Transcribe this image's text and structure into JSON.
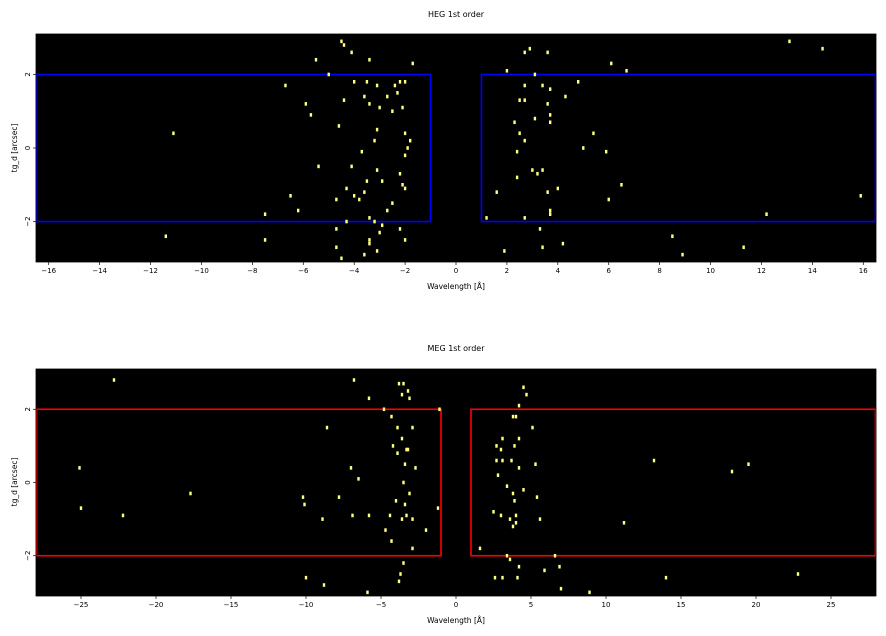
{
  "chart_data": [
    {
      "type": "scatter",
      "title": "HEG 1st order",
      "xlabel": "Wavelength [Å]",
      "ylabel": "tg_d [arcsec]",
      "xlim": [
        -16.5,
        16.5
      ],
      "ylim": [
        -3.1,
        3.1
      ],
      "xticks": [
        -16,
        -14,
        -12,
        -10,
        -8,
        -6,
        -4,
        -2,
        0,
        2,
        4,
        6,
        8,
        10,
        12,
        14,
        16
      ],
      "yticks": [
        -2,
        0,
        2
      ],
      "background": "#000000",
      "point_color": "#ffff80",
      "region_color": "#0000ff",
      "regions": [
        {
          "x0": -16.5,
          "x1": -1.0,
          "y0": -2.0,
          "y1": 2.0
        },
        {
          "x0": 1.0,
          "x1": 16.5,
          "y0": -2.0,
          "y1": 2.0
        }
      ],
      "points": [
        [
          -4.5,
          2.9
        ],
        [
          -4.4,
          2.8
        ],
        [
          -4.1,
          2.6
        ],
        [
          -3.4,
          2.4
        ],
        [
          -5.5,
          2.4
        ],
        [
          -1.7,
          2.3
        ],
        [
          -5.0,
          2.0
        ],
        [
          -6.7,
          1.7
        ],
        [
          -4.0,
          1.8
        ],
        [
          -3.5,
          1.8
        ],
        [
          -3.1,
          1.7
        ],
        [
          -2.4,
          1.7
        ],
        [
          -2.2,
          1.8
        ],
        [
          -2.0,
          1.8
        ],
        [
          -3.6,
          1.4
        ],
        [
          -2.7,
          1.4
        ],
        [
          -2.3,
          1.5
        ],
        [
          -4.4,
          1.3
        ],
        [
          -3.4,
          1.2
        ],
        [
          -3.0,
          1.1
        ],
        [
          -2.1,
          1.1
        ],
        [
          -5.9,
          1.2
        ],
        [
          -5.7,
          0.9
        ],
        [
          -2.5,
          1.0
        ],
        [
          -4.6,
          0.6
        ],
        [
          -3.1,
          0.5
        ],
        [
          -11.1,
          0.4
        ],
        [
          -2.0,
          0.4
        ],
        [
          -3.2,
          0.2
        ],
        [
          -1.8,
          0.2
        ],
        [
          -1.9,
          0.0
        ],
        [
          -3.7,
          -0.1
        ],
        [
          -2.0,
          -0.2
        ],
        [
          -5.4,
          -0.5
        ],
        [
          -4.1,
          -0.5
        ],
        [
          -3.1,
          -0.6
        ],
        [
          -2.2,
          -0.7
        ],
        [
          -3.5,
          -0.9
        ],
        [
          -2.9,
          -0.9
        ],
        [
          -2.1,
          -1.0
        ],
        [
          -4.3,
          -1.1
        ],
        [
          -2.0,
          -1.1
        ],
        [
          -3.6,
          -1.2
        ],
        [
          -6.5,
          -1.3
        ],
        [
          -3.8,
          -1.4
        ],
        [
          -4.0,
          -1.3
        ],
        [
          -4.7,
          -1.4
        ],
        [
          -2.5,
          -1.5
        ],
        [
          -6.2,
          -1.7
        ],
        [
          -2.7,
          -1.7
        ],
        [
          -3.4,
          -1.9
        ],
        [
          -7.5,
          -1.8
        ],
        [
          -4.3,
          -2.0
        ],
        [
          -3.2,
          -2.0
        ],
        [
          -2.9,
          -2.1
        ],
        [
          -4.7,
          -2.2
        ],
        [
          -2.2,
          -2.2
        ],
        [
          -3.0,
          -2.3
        ],
        [
          -11.4,
          -2.4
        ],
        [
          -3.4,
          -2.5
        ],
        [
          -2.0,
          -2.5
        ],
        [
          -7.5,
          -2.5
        ],
        [
          -4.7,
          -2.7
        ],
        [
          -3.4,
          -2.6
        ],
        [
          -4.5,
          -3.0
        ],
        [
          -3.1,
          -2.8
        ],
        [
          -3.6,
          -2.9
        ],
        [
          2.7,
          2.6
        ],
        [
          3.6,
          2.6
        ],
        [
          2.9,
          2.7
        ],
        [
          6.1,
          2.3
        ],
        [
          6.7,
          2.1
        ],
        [
          2.0,
          2.1
        ],
        [
          3.1,
          2.0
        ],
        [
          4.8,
          1.8
        ],
        [
          2.7,
          1.7
        ],
        [
          3.4,
          1.7
        ],
        [
          3.7,
          1.6
        ],
        [
          4.3,
          1.4
        ],
        [
          2.5,
          1.3
        ],
        [
          2.7,
          1.3
        ],
        [
          3.6,
          1.2
        ],
        [
          3.7,
          0.9
        ],
        [
          3.1,
          0.8
        ],
        [
          3.7,
          0.7
        ],
        [
          2.3,
          0.7
        ],
        [
          2.5,
          0.4
        ],
        [
          5.4,
          0.4
        ],
        [
          2.7,
          0.2
        ],
        [
          5.0,
          0.0
        ],
        [
          2.4,
          -0.1
        ],
        [
          5.9,
          -0.1
        ],
        [
          3.0,
          -0.6
        ],
        [
          3.4,
          -0.6
        ],
        [
          3.2,
          -0.7
        ],
        [
          2.4,
          -0.8
        ],
        [
          6.5,
          -1.0
        ],
        [
          4.0,
          -1.1
        ],
        [
          1.6,
          -1.2
        ],
        [
          3.6,
          -1.2
        ],
        [
          15.9,
          -1.3
        ],
        [
          6.0,
          -1.4
        ],
        [
          3.7,
          -1.7
        ],
        [
          3.7,
          -1.8
        ],
        [
          2.7,
          -1.9
        ],
        [
          1.2,
          -1.9
        ],
        [
          12.2,
          -1.8
        ],
        [
          3.3,
          -2.2
        ],
        [
          8.5,
          -2.4
        ],
        [
          4.2,
          -2.6
        ],
        [
          11.3,
          -2.7
        ],
        [
          3.4,
          -2.7
        ],
        [
          1.9,
          -2.8
        ],
        [
          8.9,
          -2.9
        ],
        [
          13.1,
          2.9
        ],
        [
          14.4,
          2.7
        ]
      ]
    },
    {
      "type": "scatter",
      "title": "MEG 1st order",
      "xlabel": "Wavelength [Å]",
      "ylabel": "tg_d [arcsec]",
      "xlim": [
        -28,
        28
      ],
      "ylim": [
        -3.1,
        3.1
      ],
      "xticks": [
        -25,
        -20,
        -15,
        -10,
        -5,
        0,
        5,
        10,
        15,
        20,
        25
      ],
      "yticks": [
        -2,
        0,
        2
      ],
      "background": "#000000",
      "point_color": "#ffff80",
      "region_color": "#ff0000",
      "regions": [
        {
          "x0": -28,
          "x1": -1.0,
          "y0": -2.0,
          "y1": 2.0
        },
        {
          "x0": 1.0,
          "x1": 28,
          "y0": -2.0,
          "y1": 2.0
        }
      ],
      "points": [
        [
          -22.8,
          2.8
        ],
        [
          -6.8,
          2.8
        ],
        [
          -3.8,
          2.7
        ],
        [
          -3.5,
          2.7
        ],
        [
          -3.2,
          2.5
        ],
        [
          -3.6,
          2.4
        ],
        [
          -5.8,
          2.3
        ],
        [
          -3.1,
          2.3
        ],
        [
          -4.8,
          2.0
        ],
        [
          -1.1,
          2.0
        ],
        [
          -4.3,
          1.8
        ],
        [
          -8.6,
          1.5
        ],
        [
          -3.9,
          1.5
        ],
        [
          -2.9,
          1.5
        ],
        [
          -3.6,
          1.2
        ],
        [
          -4.2,
          1.0
        ],
        [
          -3.3,
          0.9
        ],
        [
          -3.2,
          0.9
        ],
        [
          -3.9,
          0.8
        ],
        [
          -3.4,
          0.5
        ],
        [
          -2.7,
          0.4
        ],
        [
          -7.0,
          0.4
        ],
        [
          -6.5,
          0.1
        ],
        [
          -3.5,
          0.0
        ],
        [
          -25.1,
          0.4
        ],
        [
          -17.7,
          -0.3
        ],
        [
          -10.2,
          -0.4
        ],
        [
          -3.1,
          -0.3
        ],
        [
          -4.0,
          -0.5
        ],
        [
          -10.1,
          -0.6
        ],
        [
          -7.8,
          -0.4
        ],
        [
          -3.4,
          -0.6
        ],
        [
          -25.0,
          -0.7
        ],
        [
          -22.2,
          -0.9
        ],
        [
          -8.9,
          -1.0
        ],
        [
          -6.9,
          -0.9
        ],
        [
          -5.8,
          -0.9
        ],
        [
          -3.3,
          -0.9
        ],
        [
          -3.6,
          -1.0
        ],
        [
          -4.4,
          -0.9
        ],
        [
          -2.9,
          -1.0
        ],
        [
          -1.2,
          -0.7
        ],
        [
          -2.0,
          -1.3
        ],
        [
          -4.7,
          -1.3
        ],
        [
          -4.3,
          -1.6
        ],
        [
          -2.9,
          -1.8
        ],
        [
          -3.5,
          -2.2
        ],
        [
          -3.7,
          -2.5
        ],
        [
          -10.0,
          -2.6
        ],
        [
          -8.8,
          -2.8
        ],
        [
          -3.8,
          -2.7
        ],
        [
          -5.9,
          -3.0
        ],
        [
          4.5,
          2.6
        ],
        [
          4.7,
          2.4
        ],
        [
          4.2,
          2.1
        ],
        [
          3.8,
          1.8
        ],
        [
          4.0,
          1.8
        ],
        [
          5.1,
          1.5
        ],
        [
          3.1,
          1.2
        ],
        [
          4.2,
          1.2
        ],
        [
          3.9,
          1.0
        ],
        [
          2.7,
          1.0
        ],
        [
          3.0,
          0.9
        ],
        [
          2.7,
          0.6
        ],
        [
          3.1,
          0.6
        ],
        [
          5.3,
          0.5
        ],
        [
          3.7,
          0.6
        ],
        [
          4.2,
          0.4
        ],
        [
          13.2,
          0.6
        ],
        [
          19.5,
          0.5
        ],
        [
          18.4,
          0.3
        ],
        [
          2.8,
          0.2
        ],
        [
          3.4,
          -0.1
        ],
        [
          4.5,
          -0.2
        ],
        [
          3.8,
          -0.3
        ],
        [
          3.9,
          -0.5
        ],
        [
          5.4,
          -0.4
        ],
        [
          2.5,
          -0.8
        ],
        [
          3.0,
          -0.9
        ],
        [
          4.0,
          -0.9
        ],
        [
          3.6,
          -1.0
        ],
        [
          5.6,
          -1.0
        ],
        [
          4.0,
          -1.1
        ],
        [
          11.2,
          -1.1
        ],
        [
          3.8,
          -1.2
        ],
        [
          1.6,
          -1.8
        ],
        [
          6.6,
          -2.0
        ],
        [
          3.4,
          -2.0
        ],
        [
          6.9,
          -2.3
        ],
        [
          4.2,
          -2.3
        ],
        [
          3.6,
          -2.1
        ],
        [
          2.6,
          -2.6
        ],
        [
          3.1,
          -2.6
        ],
        [
          4.1,
          -2.6
        ],
        [
          5.9,
          -2.4
        ],
        [
          14.0,
          -2.6
        ],
        [
          22.8,
          -2.5
        ],
        [
          7.0,
          -2.9
        ],
        [
          8.9,
          -3.0
        ]
      ]
    }
  ]
}
